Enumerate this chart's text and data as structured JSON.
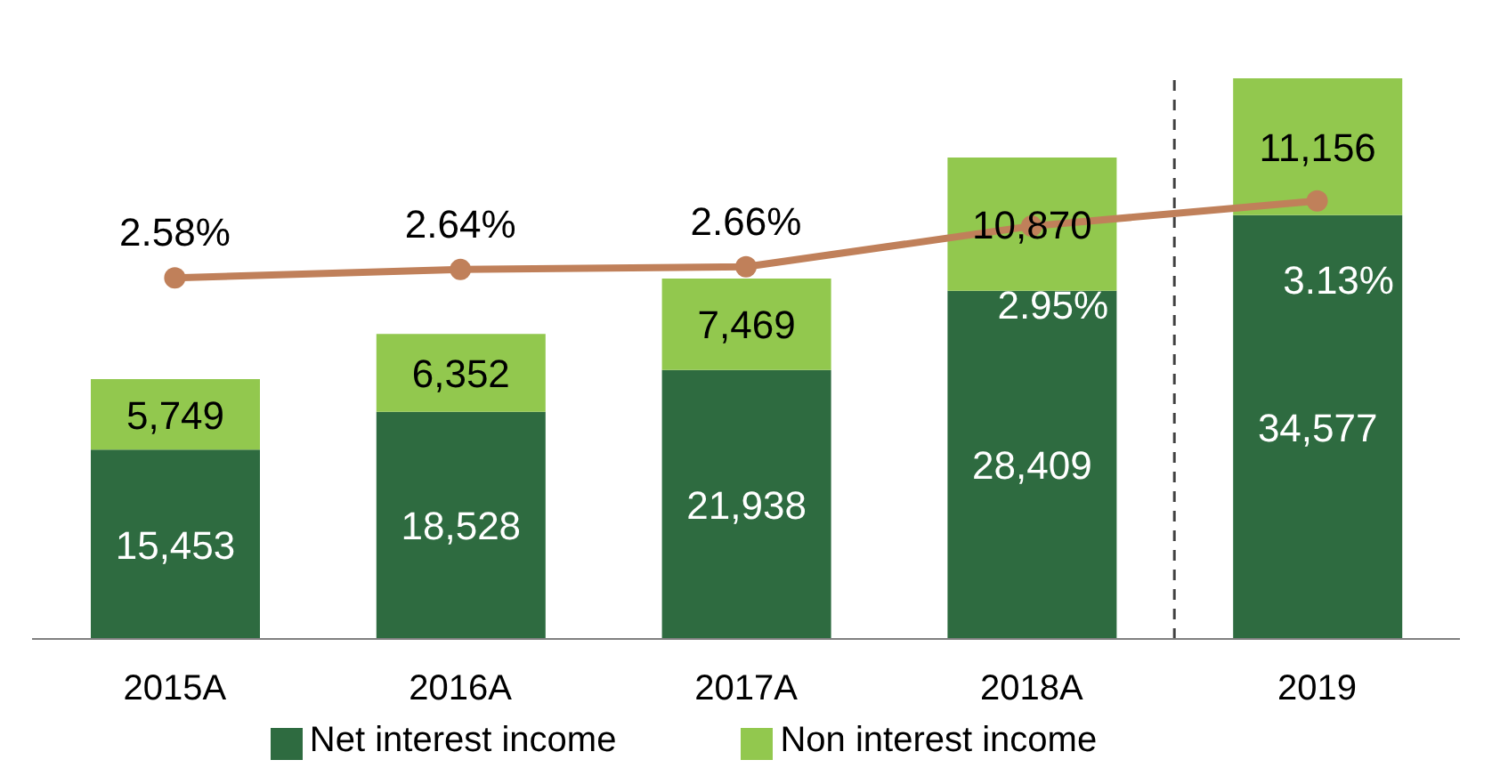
{
  "chart_data": {
    "type": "bar",
    "stacked": true,
    "categories": [
      "2015A",
      "2016A",
      "2017A",
      "2018A",
      "2019"
    ],
    "series": [
      {
        "name": "Net interest income",
        "color": "#2e6b40",
        "values": [
          15453,
          18528,
          21938,
          28409,
          34577
        ],
        "value_labels": [
          "15,453",
          "18,528",
          "21,938",
          "28,409",
          "34,577"
        ]
      },
      {
        "name": "Non interest income",
        "color": "#92c84e",
        "values": [
          5749,
          6352,
          7469,
          10870,
          11156
        ],
        "value_labels": [
          "5,749",
          "6,352",
          "7,469",
          "10,870",
          "11,156"
        ]
      },
      {
        "type": "line",
        "axis": "y2",
        "color": "#c0805a",
        "values": [
          2.58,
          2.64,
          2.66,
          2.95,
          3.13
        ],
        "value_labels": [
          "2.58%",
          "2.64%",
          "2.66%",
          "2.95%",
          "3.13%"
        ]
      }
    ],
    "marker": "circle",
    "line_style": "solid",
    "grid": false,
    "legend": "bottom",
    "tick_labels": "x"
  }
}
